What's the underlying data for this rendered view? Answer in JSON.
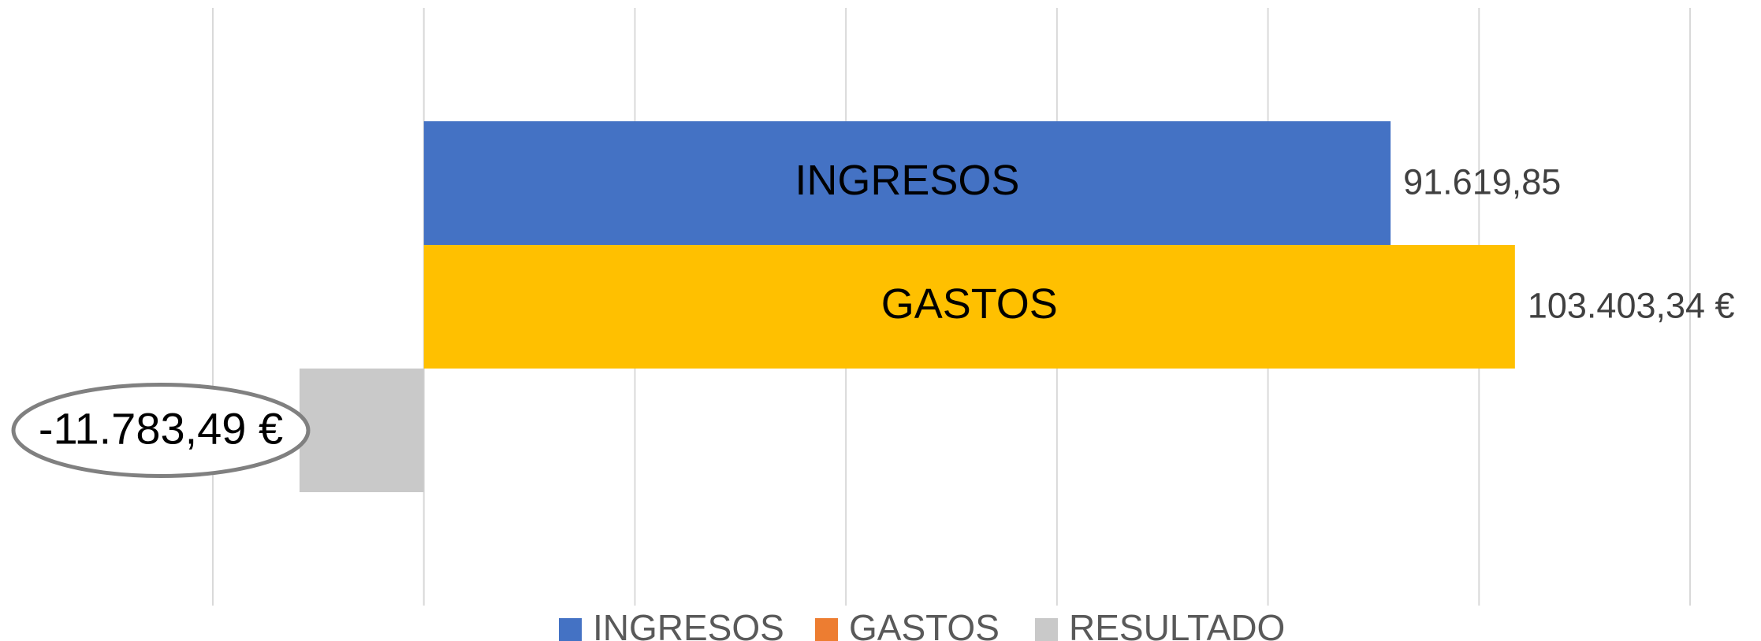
{
  "chart_data": {
    "type": "bar",
    "orientation": "horizontal",
    "xlim": [
      -20000,
      120000
    ],
    "xticks": [
      -20000,
      0,
      20000,
      40000,
      60000,
      80000,
      100000,
      120000
    ],
    "grid": true,
    "legend": "bottom",
    "series": [
      {
        "name": "INGRESOS",
        "color": "#4472c4",
        "bar_color": "#4472c4",
        "values": [
          91619.85
        ],
        "value_labels": [
          "91.619,85"
        ]
      },
      {
        "name": "GASTOS",
        "color": "#ed7d31",
        "bar_color": "#ffc000",
        "values": [
          103403.34
        ],
        "value_labels": [
          "103.403,34 €"
        ]
      },
      {
        "name": "RESULTADO",
        "color": "#c9c9c9",
        "bar_color": "#c9c9c9",
        "values": [
          -11783.49
        ],
        "value_labels": [
          "-11.783,49 €"
        ]
      }
    ]
  }
}
